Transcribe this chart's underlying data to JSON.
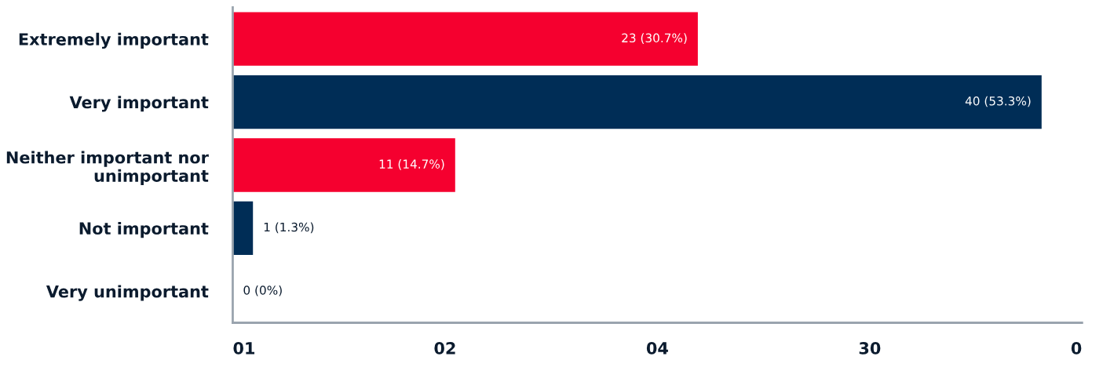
{
  "chart_data": {
    "type": "bar",
    "orientation": "horizontal",
    "categories": [
      "Extremely important",
      "Very important",
      "Neither important nor\nunimportant",
      "Not important",
      "Very unimportant"
    ],
    "values": [
      23,
      40,
      11,
      1,
      0
    ],
    "colors": [
      "#f5002f",
      "#002d56",
      "#f5002f",
      "#002d56",
      "#f5002f"
    ],
    "value_labels": [
      "23 (30.7%)",
      "40 (53.3%)",
      "11 (14.7%)",
      "1 (1.3%)",
      "0 (0%)"
    ],
    "annotations": [
      "01",
      "02",
      "04",
      "30",
      "0"
    ]
  }
}
